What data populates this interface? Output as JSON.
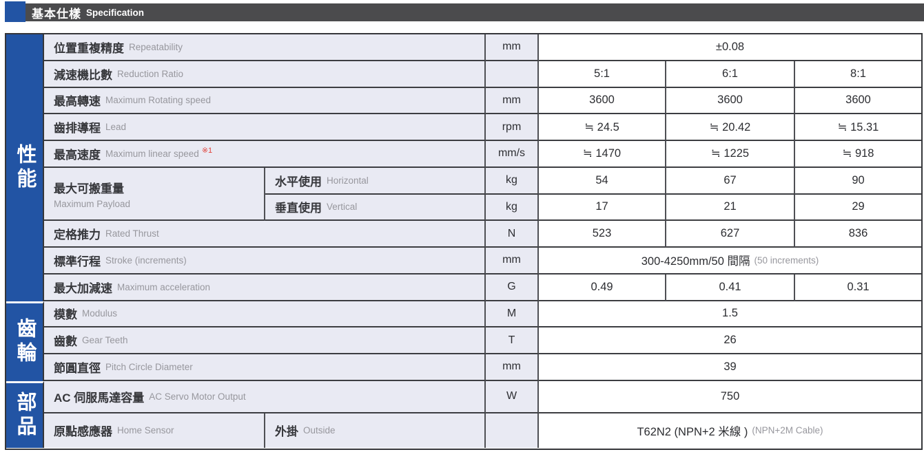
{
  "header": {
    "title_zh": "基本仕樣",
    "title_en": "Specification"
  },
  "colors": {
    "accent_blue": "#2254a4",
    "header_bar": "#4b4b4d",
    "label_bg": "#e9eaf3",
    "note_red": "#e04038"
  },
  "sections": {
    "performance": "性能",
    "gear": "齒輪",
    "parts": "部品"
  },
  "rows": {
    "repeatability": {
      "zh": "位置重複精度",
      "en": "Repeatability",
      "unit": "mm",
      "value": "±0.08"
    },
    "reduction_ratio": {
      "zh": "減速機比數",
      "en": "Reduction Ratio",
      "unit": "",
      "values": [
        "5:1",
        "6:1",
        "8:1"
      ]
    },
    "max_rotating_speed": {
      "zh": "最高轉速",
      "en": "Maximum Rotating speed",
      "unit": "mm",
      "values": [
        "3600",
        "3600",
        "3600"
      ]
    },
    "lead": {
      "zh": "齒排導程",
      "en": "Lead",
      "unit": "rpm",
      "values": [
        "≒ 24.5",
        "≒ 20.42",
        "≒ 15.31"
      ]
    },
    "max_linear_speed": {
      "zh": "最高速度",
      "en": "Maximum linear speed",
      "note": "※1",
      "unit": "mm/s",
      "values": [
        "≒ 1470",
        "≒ 1225",
        "≒ 918"
      ]
    },
    "max_payload": {
      "zh": "最大可搬重量",
      "en": "Maximum Payload",
      "horizontal": {
        "zh": "水平使用",
        "en": "Horizontal",
        "unit": "kg",
        "values": [
          "54",
          "67",
          "90"
        ]
      },
      "vertical": {
        "zh": "垂直使用",
        "en": "Vertical",
        "unit": "kg",
        "values": [
          "17",
          "21",
          "29"
        ]
      }
    },
    "rated_thrust": {
      "zh": "定格推力",
      "en": "Rated Thrust",
      "unit": "N",
      "values": [
        "523",
        "627",
        "836"
      ]
    },
    "stroke": {
      "zh": "標準行程",
      "en": "Stroke (increments)",
      "unit": "mm",
      "value_main": "300-4250mm/50 間隔",
      "value_sub": "(50 increments)"
    },
    "max_acceleration": {
      "zh": "最大加減速",
      "en": "Maximum acceleration",
      "unit": "G",
      "values": [
        "0.49",
        "0.41",
        "0.31"
      ]
    },
    "modulus": {
      "zh": "模數",
      "en": "Modulus",
      "unit": "M",
      "value": "1.5"
    },
    "gear_teeth": {
      "zh": "齒數",
      "en": "Gear Teeth",
      "unit": "T",
      "value": "26"
    },
    "pitch_circle_diameter": {
      "zh": "節圓直徑",
      "en": "Pitch Circle Diameter",
      "unit": "mm",
      "value": "39"
    },
    "servo_output": {
      "zh": "AC 伺服馬達容量",
      "en": "AC Servo Motor Output",
      "unit": "W",
      "value": "750"
    },
    "home_sensor": {
      "zh": "原點感應器",
      "en": "Home Sensor",
      "sub_zh": "外掛",
      "sub_en": "Outside",
      "unit": "",
      "value_main": "T62N2 (NPN+2 米線 )",
      "value_sub": "(NPN+2M Cable)"
    }
  }
}
